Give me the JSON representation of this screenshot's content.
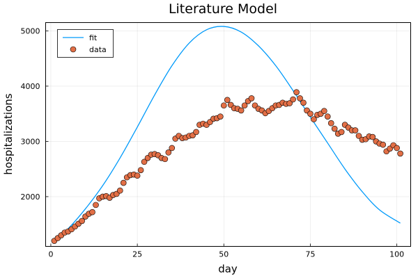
{
  "chart_data": {
    "type": "scatter",
    "title": "Literature Model",
    "xlabel": "day",
    "ylabel": "hospitalizations",
    "xlim": [
      -1.5,
      104
    ],
    "ylim": [
      1100,
      5150
    ],
    "xticks": [
      0,
      25,
      50,
      75,
      100
    ],
    "yticks": [
      2000,
      3000,
      4000,
      5000
    ],
    "grid": true,
    "legend_position": "top-left",
    "colors": {
      "fit": "#009AFA",
      "data": "#E26F46"
    },
    "series": [
      {
        "name": "fit",
        "kind": "line",
        "x": [
          1,
          5,
          10,
          15,
          20,
          25,
          30,
          35,
          40,
          45,
          50,
          55,
          60,
          65,
          70,
          75,
          80,
          85,
          90,
          95,
          101
        ],
        "y": [
          1210,
          1420,
          1780,
          2200,
          2700,
          3260,
          3840,
          4370,
          4780,
          5020,
          5080,
          4980,
          4730,
          4370,
          3920,
          3440,
          2970,
          2500,
          2090,
          1760,
          1520
        ]
      },
      {
        "name": "data",
        "kind": "scatter",
        "x": [
          1,
          2,
          3,
          4,
          5,
          6,
          7,
          8,
          9,
          10,
          11,
          12,
          13,
          14,
          15,
          16,
          17,
          18,
          19,
          20,
          21,
          22,
          23,
          24,
          25,
          26,
          27,
          28,
          29,
          30,
          31,
          32,
          33,
          34,
          35,
          36,
          37,
          38,
          39,
          40,
          41,
          42,
          43,
          44,
          45,
          46,
          47,
          48,
          49,
          50,
          51,
          52,
          53,
          54,
          55,
          56,
          57,
          58,
          59,
          60,
          61,
          62,
          63,
          64,
          65,
          66,
          67,
          68,
          69,
          70,
          71,
          72,
          73,
          74,
          75,
          76,
          77,
          78,
          79,
          80,
          81,
          82,
          83,
          84,
          85,
          86,
          87,
          88,
          89,
          90,
          91,
          92,
          93,
          94,
          95,
          96,
          97,
          98,
          99,
          100,
          101
        ],
        "y": [
          1200,
          1250,
          1300,
          1350,
          1370,
          1410,
          1460,
          1510,
          1560,
          1640,
          1690,
          1720,
          1850,
          1970,
          2000,
          2010,
          1980,
          2030,
          2050,
          2110,
          2250,
          2350,
          2390,
          2400,
          2380,
          2480,
          2630,
          2700,
          2760,
          2770,
          2750,
          2700,
          2680,
          2800,
          2880,
          3050,
          3100,
          3060,
          3070,
          3100,
          3110,
          3170,
          3300,
          3320,
          3300,
          3350,
          3410,
          3420,
          3450,
          3650,
          3750,
          3660,
          3600,
          3590,
          3560,
          3650,
          3730,
          3780,
          3650,
          3590,
          3560,
          3510,
          3550,
          3600,
          3650,
          3660,
          3700,
          3680,
          3690,
          3760,
          3890,
          3780,
          3700,
          3560,
          3500,
          3400,
          3480,
          3500,
          3550,
          3450,
          3330,
          3230,
          3140,
          3170,
          3300,
          3250,
          3200,
          3200,
          3100,
          3030,
          3040,
          3090,
          3080,
          3000,
          2960,
          2940,
          2820,
          2870,
          2930,
          2880,
          2780
        ]
      }
    ]
  }
}
